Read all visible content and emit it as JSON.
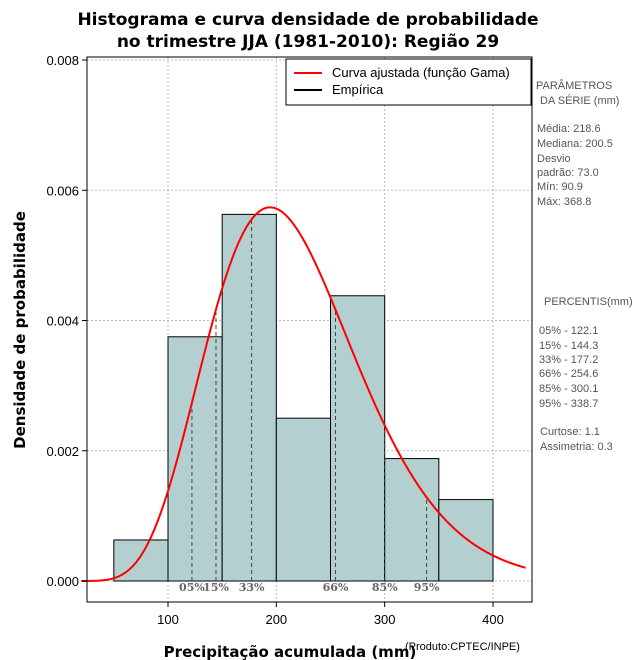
{
  "chart_data": {
    "type": "histogram",
    "title_line1": "Histograma e curva densidade de probabilidade",
    "title_line2": "no trimestre JJA (1981-2010): Região 29",
    "xlabel": "Precipitação acumulada (mm)",
    "ylabel": "Densidade de probabilidade",
    "credit": "(Produto:CPTEC/INPE)",
    "xlim": [
      20,
      430
    ],
    "ylim": [
      0,
      0.008
    ],
    "xticks": [
      100,
      200,
      300,
      400
    ],
    "xtick_labels": [
      "100",
      "200",
      "300",
      "400"
    ],
    "yticks": [
      0,
      0.002,
      0.004,
      0.006,
      0.008
    ],
    "ytick_labels": [
      "0.000",
      "0.002",
      "0.004",
      "0.006",
      "0.008"
    ],
    "grid": true,
    "bins": [
      {
        "start": 50,
        "end": 100,
        "density": 0.00063
      },
      {
        "start": 100,
        "end": 150,
        "density": 0.00375
      },
      {
        "start": 150,
        "end": 200,
        "density": 0.00563
      },
      {
        "start": 200,
        "end": 250,
        "density": 0.0025
      },
      {
        "start": 250,
        "end": 300,
        "density": 0.00438
      },
      {
        "start": 300,
        "end": 350,
        "density": 0.00188
      },
      {
        "start": 350,
        "end": 400,
        "density": 0.00125
      }
    ],
    "gamma_fit": {
      "mean": 218.6,
      "sd": 73.0
    },
    "legend": [
      {
        "label": "Curva ajustada (função Gama)",
        "color": "#ff0000"
      },
      {
        "label": "Empírica",
        "color": "#000000"
      }
    ],
    "percentile_markers": [
      {
        "label": "05%",
        "value": 122.1
      },
      {
        "label": "15%",
        "value": 144.3
      },
      {
        "label": "33%",
        "value": 177.2
      },
      {
        "label": "66%",
        "value": 254.6
      },
      {
        "label": "85%",
        "value": 300.1
      },
      {
        "label": "95%",
        "value": 338.7
      }
    ],
    "colors": {
      "bar_fill": "#b4cfcf",
      "curve": "#ff0000",
      "grid": "#bbbbbb"
    }
  },
  "side_panel": {
    "params_header_1": "PARÂMETROS",
    "params_header_2": "DA SÉRIE (mm)",
    "media": "Média:  218.6",
    "mediana": "Mediana:  200.5",
    "desvio_1": "Desvio",
    "desvio_2": "padrão:  73.0",
    "min": "Mín:  90.9",
    "max": "Máx:  368.8",
    "percentis_header": "PERCENTIS(mm)",
    "p05": "05% -   122.1",
    "p15": "15% -   144.3",
    "p33": "33% -   177.2",
    "p66": "66% -   254.6",
    "p85": "85% -   300.1",
    "p95": "95% -   338.7",
    "curtose": "Curtose:  1.1",
    "assimetria": "Assimetria:  0.3"
  }
}
